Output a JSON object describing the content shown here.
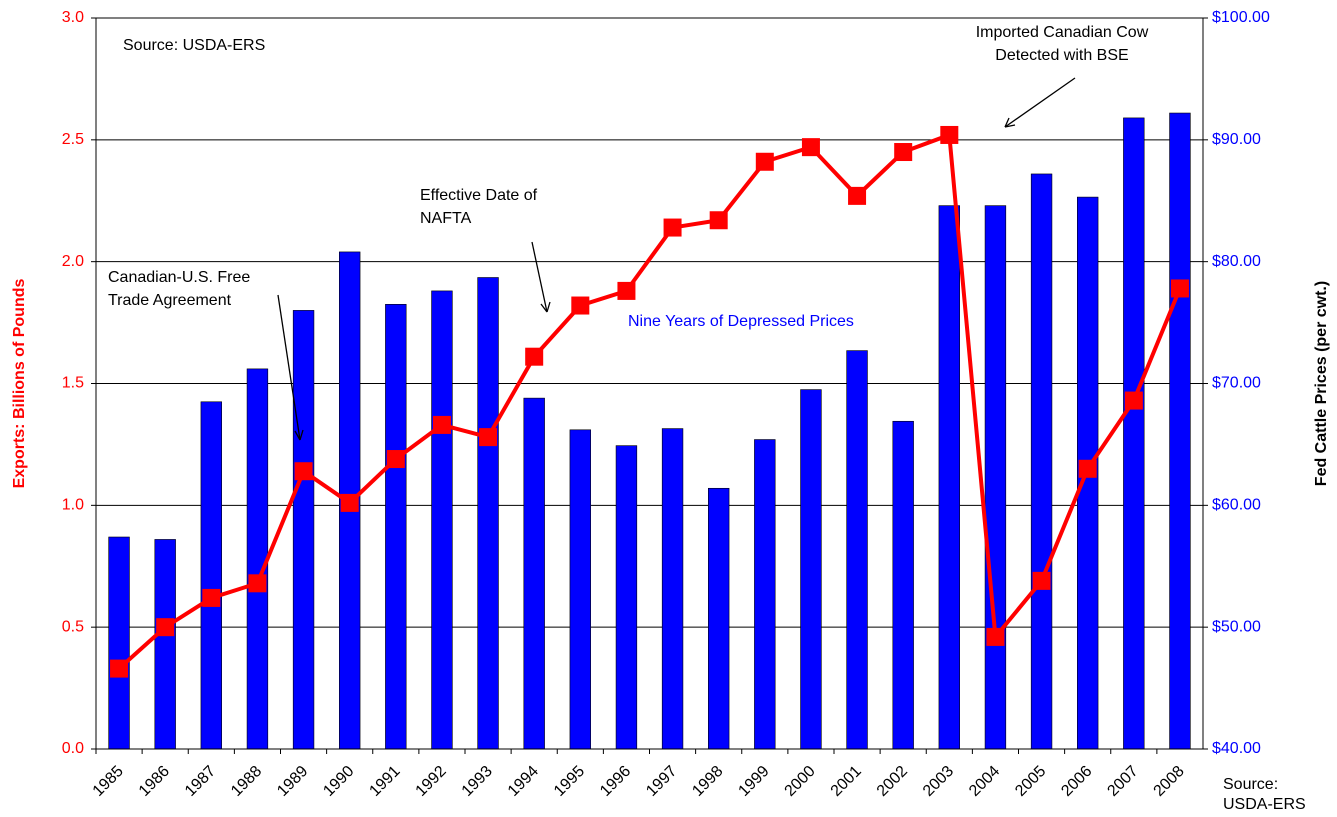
{
  "chart_data": {
    "type": "bar",
    "y_label": "Exports: Billions of Pounds",
    "y2_label": "Fed Cattle Prices (per cwt.)",
    "categories": [
      "1985",
      "1986",
      "1987",
      "1988",
      "1989",
      "1990",
      "1991",
      "1992",
      "1993",
      "1994",
      "1995",
      "1996",
      "1997",
      "1998",
      "1999",
      "2000",
      "2001",
      "2002",
      "2003",
      "2004",
      "2005",
      "2006",
      "2007",
      "2008"
    ],
    "series": [
      {
        "type": "bar",
        "axis": "y2",
        "color": "#0000ff",
        "values": [
          57.4,
          57.2,
          68.5,
          71.2,
          76.0,
          80.8,
          76.5,
          77.6,
          78.7,
          68.8,
          66.2,
          64.9,
          66.3,
          61.4,
          65.4,
          69.5,
          72.7,
          66.9,
          84.6,
          84.6,
          87.2,
          85.3,
          91.8,
          92.2
        ]
      },
      {
        "type": "line",
        "axis": "y",
        "color": "#ff0000",
        "values": [
          0.33,
          0.5,
          0.62,
          0.68,
          1.14,
          1.01,
          1.19,
          1.33,
          1.28,
          1.61,
          1.82,
          1.88,
          2.14,
          2.17,
          2.41,
          2.47,
          2.27,
          2.45,
          2.52,
          0.46,
          0.69,
          1.15,
          1.43,
          1.89
        ]
      }
    ],
    "ylim": [
      0,
      3
    ],
    "yticks": [
      {
        "value": 0,
        "label": "0.0"
      },
      0.5,
      {
        "value": 1,
        "label": "1.0"
      },
      1.5,
      {
        "value": 2,
        "label": "2.0"
      },
      2.5,
      {
        "value": 3,
        "label": "3.0"
      }
    ],
    "y2lim": [
      40,
      100
    ],
    "y2ticks": [
      {
        "value": 40,
        "label": "$40.00"
      },
      {
        "value": 50,
        "label": "$50.00"
      },
      {
        "value": 60,
        "label": "$60.00"
      },
      {
        "value": 70,
        "label": "$70.00"
      },
      {
        "value": 80,
        "label": "$80.00"
      },
      {
        "value": 90,
        "label": "$90.00"
      },
      {
        "value": 100,
        "label": "$100.00"
      }
    ],
    "grid": true,
    "annotations": [
      {
        "lines": [
          "Source:  USDA-ERS"
        ]
      },
      {
        "lines": [
          "Imported Canadian Cow",
          "Detected with BSE"
        ]
      },
      {
        "lines": [
          "Effective Date of",
          "NAFTA"
        ]
      },
      {
        "lines": [
          "Canadian-U.S. Free",
          "Trade Agreement"
        ]
      },
      {
        "lines": [
          "Nine Years of Depressed Prices"
        ],
        "color": "#0000ff"
      },
      {
        "lines": [
          "Source:",
          "USDA-ERS"
        ]
      }
    ]
  }
}
